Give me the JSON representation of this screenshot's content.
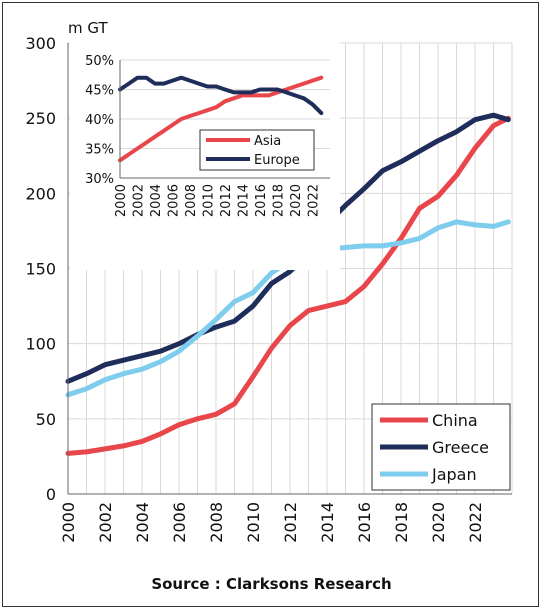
{
  "source_text": "Source : Clarksons Research",
  "chart_data": [
    {
      "type": "line",
      "title": "",
      "ylabel": "m GT",
      "ylim": [
        0,
        300
      ],
      "yticks": [
        0,
        50,
        100,
        150,
        200,
        250,
        300
      ],
      "xlim": [
        2000,
        2024
      ],
      "xticks": [
        "2000",
        "2002",
        "2004",
        "2006",
        "2008",
        "2010",
        "2012",
        "2014",
        "2016",
        "2018",
        "2020",
        "2022"
      ],
      "grid": true,
      "legend_position": "bottom-right",
      "series": [
        {
          "name": "China",
          "color": "#e8464a",
          "x": [
            2000,
            2001,
            2002,
            2003,
            2004,
            2005,
            2006,
            2007,
            2008,
            2009,
            2010,
            2011,
            2012,
            2013,
            2014,
            2015,
            2016,
            2017,
            2018,
            2019,
            2020,
            2021,
            2022,
            2023,
            2023.8
          ],
          "y": [
            27,
            28,
            30,
            32,
            35,
            40,
            46,
            50,
            53,
            60,
            78,
            97,
            112,
            122,
            125,
            128,
            138,
            153,
            170,
            190,
            198,
            212,
            230,
            245,
            250
          ]
        },
        {
          "name": "Greece",
          "color": "#1f2d5a",
          "x": [
            2000,
            2001,
            2002,
            2003,
            2004,
            2005,
            2006,
            2007,
            2008,
            2009,
            2010,
            2011,
            2012,
            2013,
            2014,
            2015,
            2016,
            2017,
            2018,
            2019,
            2020,
            2021,
            2022,
            2023,
            2023.8
          ],
          "y": [
            75,
            80,
            86,
            89,
            92,
            95,
            100,
            106,
            111,
            115,
            125,
            140,
            148,
            160,
            180,
            192,
            203,
            215,
            221,
            228,
            235,
            241,
            249,
            252,
            249
          ]
        },
        {
          "name": "Japan",
          "color": "#7fcdec",
          "x": [
            2000,
            2001,
            2002,
            2003,
            2004,
            2005,
            2006,
            2007,
            2008,
            2009,
            2010,
            2011,
            2012,
            2013,
            2014,
            2015,
            2016,
            2017,
            2018,
            2019,
            2020,
            2021,
            2022,
            2023,
            2023.8
          ],
          "y": [
            66,
            70,
            76,
            80,
            83,
            88,
            95,
            105,
            116,
            128,
            134,
            147,
            155,
            160,
            163,
            164,
            165,
            165,
            167,
            170,
            177,
            181,
            179,
            178,
            181
          ]
        }
      ]
    },
    {
      "type": "line",
      "title": "",
      "ylim": [
        0.3,
        0.5
      ],
      "yticks": [
        "30%",
        "35%",
        "40%",
        "45%",
        "50%"
      ],
      "ytick_values": [
        0.3,
        0.35,
        0.4,
        0.45,
        0.5
      ],
      "xlim": [
        2000,
        2024
      ],
      "xticks": [
        "2000",
        "2002",
        "2004",
        "2006",
        "2008",
        "2010",
        "2012",
        "2014",
        "2016",
        "2018",
        "2020",
        "2022"
      ],
      "grid": true,
      "legend_position": "bottom-right",
      "series": [
        {
          "name": "Asia",
          "color": "#e8464a",
          "x": [
            2000,
            2001,
            2002,
            2003,
            2004,
            2005,
            2006,
            2007,
            2008,
            2009,
            2010,
            2011,
            2012,
            2013,
            2014,
            2015,
            2016,
            2017,
            2018,
            2019,
            2020,
            2021,
            2022,
            2023
          ],
          "y": [
            0.33,
            0.34,
            0.35,
            0.36,
            0.37,
            0.38,
            0.39,
            0.4,
            0.405,
            0.41,
            0.415,
            0.42,
            0.43,
            0.435,
            0.44,
            0.44,
            0.44,
            0.44,
            0.445,
            0.45,
            0.455,
            0.46,
            0.465,
            0.47
          ]
        },
        {
          "name": "Europe",
          "color": "#1f2d5a",
          "x": [
            2000,
            2001,
            2002,
            2003,
            2004,
            2005,
            2006,
            2007,
            2008,
            2009,
            2010,
            2011,
            2012,
            2013,
            2014,
            2015,
            2016,
            2017,
            2018,
            2019,
            2020,
            2021,
            2022,
            2023
          ],
          "y": [
            0.45,
            0.46,
            0.47,
            0.47,
            0.46,
            0.46,
            0.465,
            0.47,
            0.465,
            0.46,
            0.455,
            0.455,
            0.45,
            0.445,
            0.445,
            0.445,
            0.45,
            0.45,
            0.45,
            0.445,
            0.44,
            0.435,
            0.425,
            0.41
          ]
        }
      ]
    }
  ]
}
